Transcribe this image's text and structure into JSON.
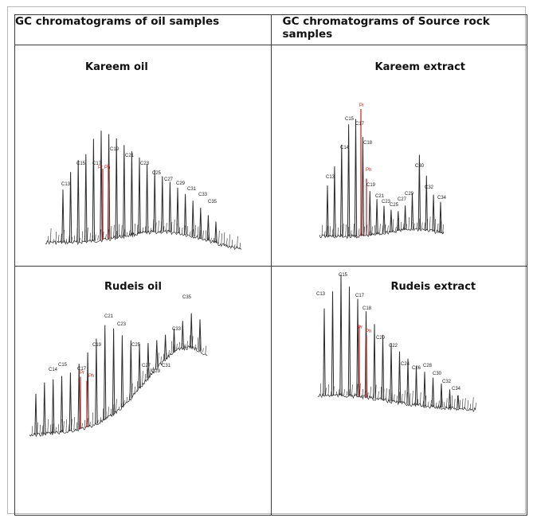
{
  "headers": {
    "oil": "GC chromatograms of oil samples",
    "source": "GC chromatograms of Source rock samples"
  },
  "panels": [
    {
      "id": "kareem-oil",
      "title": "Kareem oil",
      "colors": {
        "peak": "#2b2b2b",
        "marker": "#c62020"
      },
      "labels": [
        "C13",
        "C15",
        "C17",
        "Pr",
        "Ph",
        "C19",
        "C21",
        "C23",
        "C25",
        "C27",
        "C29",
        "C31",
        "C33",
        "C35"
      ],
      "n_alkane_peaks": [
        0.45,
        0.6,
        0.7,
        0.75,
        0.88,
        0.95,
        0.92,
        0.88,
        0.82,
        0.76,
        0.7,
        0.64,
        0.58,
        0.52,
        0.47,
        0.42,
        0.37,
        0.32,
        0.27,
        0.22,
        0.18
      ],
      "markers": [
        0.62,
        0.66
      ]
    },
    {
      "id": "kareem-extract",
      "title": "Kareem extract",
      "colors": {
        "peak": "#2b2b2b",
        "marker": "#c62020"
      },
      "labels": [
        "Pr",
        "C15",
        "C17",
        "C14",
        "C18",
        "Ph",
        "C13",
        "C19",
        "C21",
        "C23",
        "C25",
        "C27",
        "C29",
        "C30",
        "C32",
        "C34"
      ],
      "n_alkane_peaks": [
        0.4,
        0.55,
        0.72,
        0.88,
        0.92,
        0.78,
        0.35,
        0.28,
        0.22,
        0.18,
        0.16,
        0.2,
        0.3,
        0.62,
        0.45,
        0.3,
        0.25
      ],
      "markers": [
        1.0,
        0.45
      ]
    },
    {
      "id": "rudeis-oil",
      "title": "Rudeis oil",
      "colors": {
        "peak": "#2b2b2b",
        "marker": "#c62020"
      },
      "labels": [
        "C14",
        "C15",
        "C17",
        "Pr",
        "Ph",
        "C19",
        "C21",
        "C23",
        "C25",
        "C27",
        "C29",
        "C31",
        "C33",
        "C35"
      ],
      "n_alkane_peaks": [
        0.3,
        0.38,
        0.4,
        0.42,
        0.44,
        0.5,
        0.58,
        0.68,
        0.78,
        0.74,
        0.66,
        0.58,
        0.5,
        0.44,
        0.4,
        0.4,
        0.44,
        0.55,
        0.7,
        0.6
      ],
      "markers": [
        0.4,
        0.36
      ]
    },
    {
      "id": "rudeis-extract",
      "title": "Rudeis extract",
      "colors": {
        "peak": "#2b2b2b",
        "marker": "#c62020"
      },
      "labels": [
        "C15",
        "C13",
        "C17",
        "C18",
        "Pr",
        "Ph",
        "C20",
        "C22",
        "C24",
        "C26",
        "C28",
        "C30",
        "C32",
        "C34"
      ],
      "n_alkane_peaks": [
        0.72,
        0.86,
        1.0,
        0.9,
        0.8,
        0.7,
        0.6,
        0.52,
        0.46,
        0.4,
        0.35,
        0.3,
        0.26,
        0.22,
        0.18,
        0.14,
        0.1
      ],
      "markers": [
        0.58,
        0.5
      ]
    }
  ]
}
